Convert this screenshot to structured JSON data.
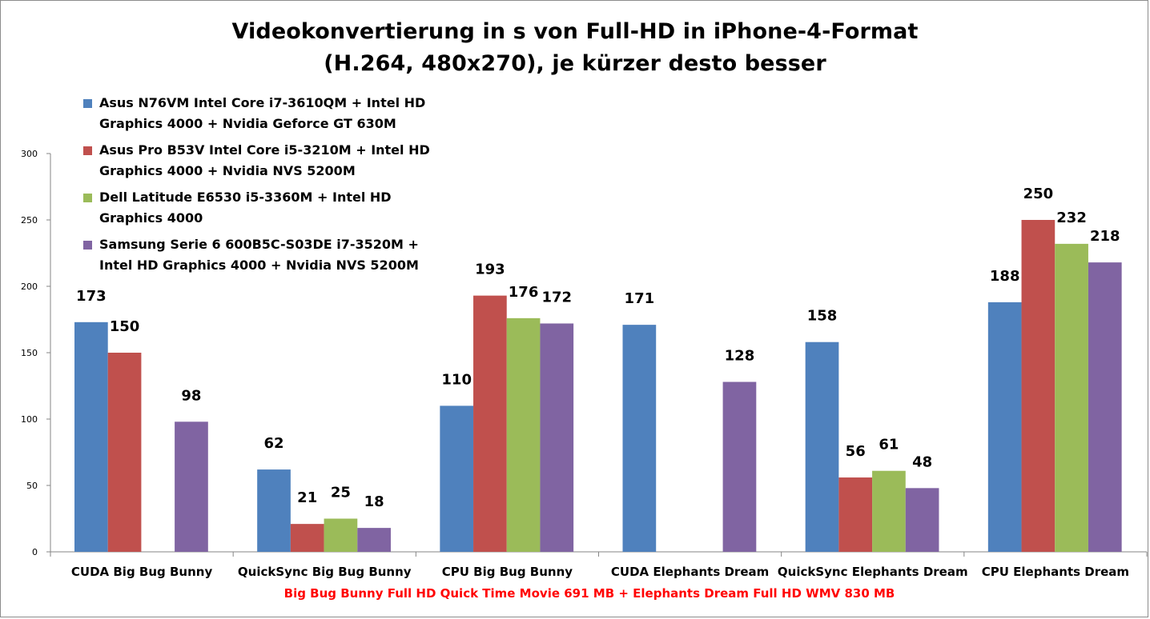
{
  "chart_data": {
    "type": "bar",
    "title": "Videokonvertierung in s von Full-HD in iPhone-4-Format",
    "subtitle": "(H.264, 480x270), je kürzer desto besser",
    "xlabel": "Big Bug Bunny Full HD Quick Time Movie 691 MB + Elephants Dream Full HD WMV 830 MB",
    "ylabel": "",
    "ylim": [
      0,
      300
    ],
    "yticks": [
      0,
      50,
      100,
      150,
      200,
      250,
      300
    ],
    "grid": false,
    "legend_position": "top-left",
    "categories": [
      "CUDA Big Bug Bunny",
      "QuickSync Big Bug Bunny",
      "CPU Big Bug Bunny",
      "CUDA Elephants Dream",
      "QuickSync Elephants Dream",
      "CPU Elephants Dream"
    ],
    "series": [
      {
        "name": "Asus N76VM Intel Core i7-3610QM + Intel HD Graphics 4000 + Nvidia Geforce GT 630M",
        "color": "#4f81bd",
        "values": [
          173,
          62,
          110,
          171,
          158,
          188
        ]
      },
      {
        "name": "Asus Pro B53V Intel Core i5-3210M + Intel HD Graphics 4000 + Nvidia NVS 5200M",
        "color": "#c0504d",
        "values": [
          150,
          21,
          193,
          null,
          56,
          250
        ]
      },
      {
        "name": "Dell Latitude E6530 i5-3360M + Intel HD Graphics 4000",
        "color": "#9bbb59",
        "values": [
          null,
          25,
          176,
          null,
          61,
          232
        ]
      },
      {
        "name": "Samsung Serie 6 600B5C-S03DE i7-3520M + Intel HD Graphics 4000 + Nvidia NVS 5200M",
        "color": "#8064a2",
        "values": [
          98,
          18,
          172,
          128,
          48,
          218
        ]
      }
    ]
  },
  "colors": {
    "axis": "#868686",
    "footnote": "#ff0000"
  }
}
